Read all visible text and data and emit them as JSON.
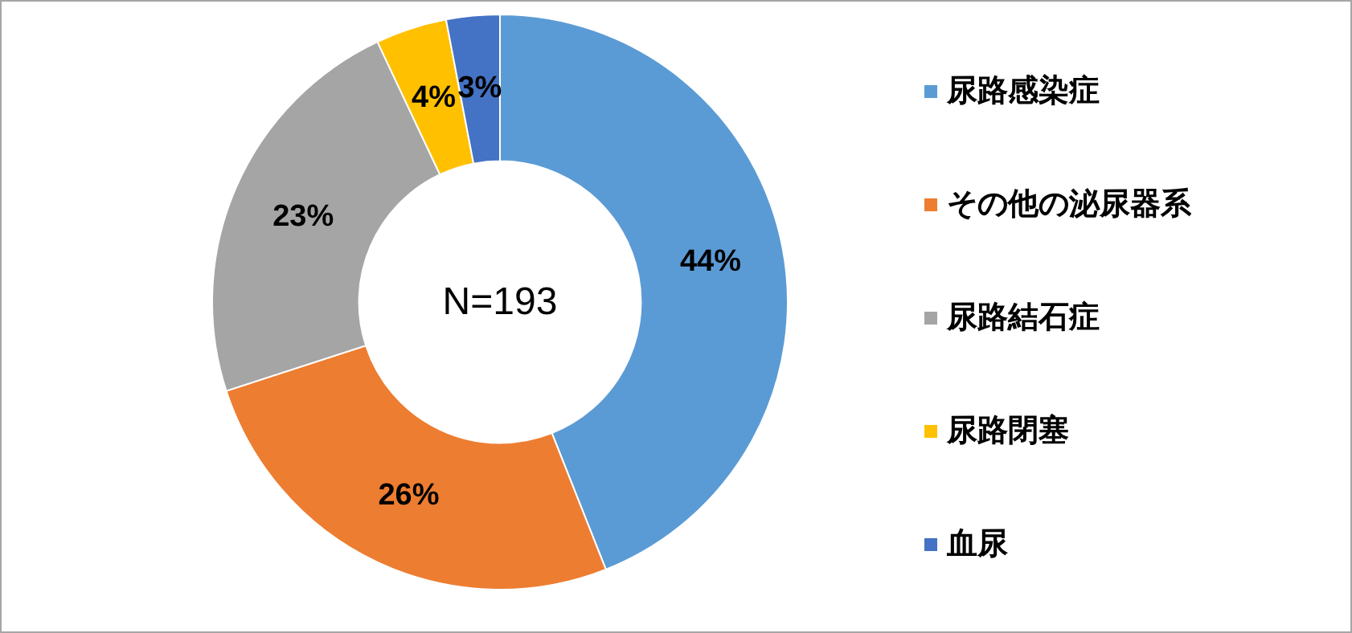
{
  "chart_data": {
    "type": "donut",
    "categories": [
      "尿路感染症",
      "その他の泌尿器系",
      "尿路結石症",
      "尿路閉塞",
      "血尿"
    ],
    "values": [
      44,
      26,
      23,
      4,
      3
    ],
    "colors": [
      "#5b9bd5",
      "#ed7d31",
      "#a5a5a5",
      "#ffc000",
      "#4472c4"
    ],
    "value_labels": [
      "44%",
      "26%",
      "23%",
      "4%",
      "3%"
    ],
    "annotations": [
      "N=193"
    ],
    "legend": "right"
  }
}
